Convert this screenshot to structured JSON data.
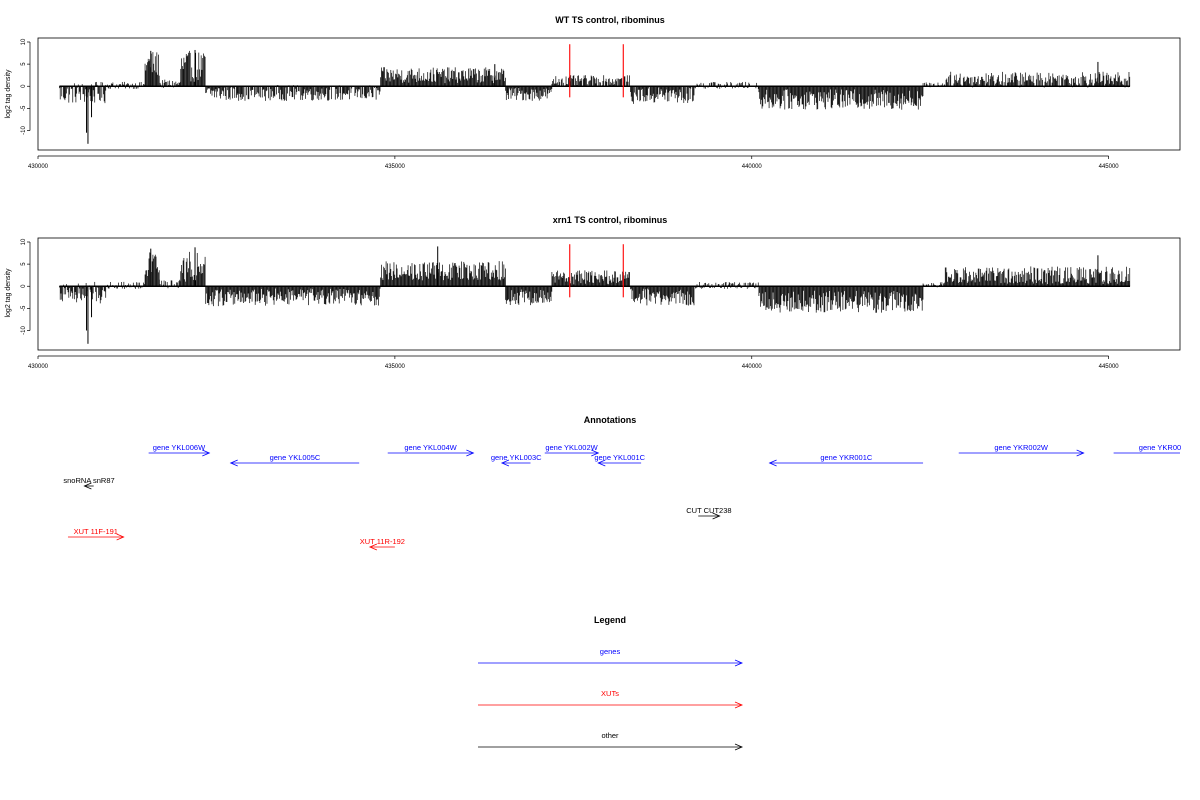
{
  "chart_data": [
    {
      "type": "bar",
      "title": "WT TS control, ribominus",
      "ylabel": "log2 tag density",
      "xlim": [
        430000,
        446000
      ],
      "ylim": [
        -13.5,
        10
      ],
      "yticks": [
        10,
        5,
        0,
        -5,
        -10
      ],
      "ytick_labels": [
        "10",
        "5",
        "0",
        "-5",
        "-10"
      ],
      "xticks": [
        430000,
        435000,
        440000,
        445000
      ],
      "xtick_labels": [
        "430000",
        "435000",
        "440000",
        "445000"
      ],
      "grid": false,
      "baseline": [
        430300,
        445300
      ],
      "red_markers": [
        437450,
        438200
      ],
      "segments": [
        {
          "start": 430300,
          "end": 430950,
          "mean": -1.5,
          "spread": 2.5
        },
        {
          "start": 430950,
          "end": 431500,
          "mean": 0.2,
          "spread": 0.8
        },
        {
          "start": 431500,
          "end": 431700,
          "mean": 5.0,
          "spread": 3.0
        },
        {
          "start": 431700,
          "end": 432000,
          "mean": 0.5,
          "spread": 1.0
        },
        {
          "start": 432000,
          "end": 432350,
          "mean": 4.5,
          "spread": 3.5
        },
        {
          "start": 432350,
          "end": 434800,
          "mean": -1.5,
          "spread": 1.8
        },
        {
          "start": 434800,
          "end": 436550,
          "mean": 2.5,
          "spread": 1.8
        },
        {
          "start": 436550,
          "end": 437200,
          "mean": -1.8,
          "spread": 1.5
        },
        {
          "start": 437200,
          "end": 438300,
          "mean": 1.2,
          "spread": 1.3
        },
        {
          "start": 438300,
          "end": 439200,
          "mean": -2.0,
          "spread": 2.0
        },
        {
          "start": 439200,
          "end": 440100,
          "mean": 0.2,
          "spread": 0.8
        },
        {
          "start": 440100,
          "end": 442400,
          "mean": -3.0,
          "spread": 2.3
        },
        {
          "start": 442400,
          "end": 442700,
          "mean": 0.3,
          "spread": 0.6
        },
        {
          "start": 442700,
          "end": 445300,
          "mean": 1.5,
          "spread": 1.8
        }
      ],
      "spikes": [
        [
          430700,
          -13
        ],
        [
          430680,
          -10.5
        ],
        [
          430750,
          -7
        ],
        [
          431580,
          8
        ],
        [
          432200,
          8.2
        ],
        [
          436400,
          5
        ],
        [
          444850,
          5.5
        ]
      ]
    },
    {
      "type": "bar",
      "title": "xrn1 TS control, ribominus",
      "ylabel": "log2 tag density",
      "xlim": [
        430000,
        446000
      ],
      "ylim": [
        -13.5,
        10
      ],
      "yticks": [
        10,
        5,
        0,
        -5,
        -10
      ],
      "ytick_labels": [
        "10",
        "5",
        "0",
        "-5",
        "-10"
      ],
      "xticks": [
        430000,
        435000,
        440000,
        445000
      ],
      "xtick_labels": [
        "430000",
        "435000",
        "440000",
        "445000"
      ],
      "grid": false,
      "baseline": [
        430300,
        445300
      ],
      "red_markers": [
        437450,
        438200
      ],
      "segments": [
        {
          "start": 430300,
          "end": 430950,
          "mean": -1.5,
          "spread": 2.5
        },
        {
          "start": 430950,
          "end": 431500,
          "mean": 0.2,
          "spread": 0.8
        },
        {
          "start": 431500,
          "end": 431700,
          "mean": 5.0,
          "spread": 3.0
        },
        {
          "start": 431700,
          "end": 432000,
          "mean": 0.5,
          "spread": 1.0
        },
        {
          "start": 432000,
          "end": 432350,
          "mean": 4.5,
          "spread": 3.5
        },
        {
          "start": 432350,
          "end": 434800,
          "mean": -2.5,
          "spread": 2.0
        },
        {
          "start": 434800,
          "end": 436550,
          "mean": 3.5,
          "spread": 2.2
        },
        {
          "start": 436550,
          "end": 437200,
          "mean": -2.5,
          "spread": 1.8
        },
        {
          "start": 437200,
          "end": 438300,
          "mean": 2.0,
          "spread": 1.6
        },
        {
          "start": 438300,
          "end": 439200,
          "mean": -2.5,
          "spread": 2.0
        },
        {
          "start": 439200,
          "end": 440100,
          "mean": 0.2,
          "spread": 0.8
        },
        {
          "start": 440100,
          "end": 442400,
          "mean": -3.5,
          "spread": 2.5
        },
        {
          "start": 442400,
          "end": 442700,
          "mean": 0.3,
          "spread": 0.6
        },
        {
          "start": 442700,
          "end": 445300,
          "mean": 2.5,
          "spread": 2.0
        }
      ],
      "spikes": [
        [
          430700,
          -13
        ],
        [
          430680,
          -10
        ],
        [
          430750,
          -7
        ],
        [
          431580,
          8.5
        ],
        [
          432200,
          8.8
        ],
        [
          435600,
          9
        ],
        [
          444850,
          7
        ]
      ]
    }
  ],
  "annotations": {
    "title": "Annotations",
    "xlim": [
      430000,
      446000
    ],
    "features": [
      {
        "label": "gene YKL006W",
        "start": 431550,
        "end": 432400,
        "dir": "right",
        "kind": "genes",
        "lane": 0
      },
      {
        "label": "gene YKL005C",
        "start": 432700,
        "end": 434500,
        "dir": "left",
        "kind": "genes",
        "lane": 1
      },
      {
        "label": "gene YKL004W",
        "start": 434900,
        "end": 436100,
        "dir": "right",
        "kind": "genes",
        "lane": 0
      },
      {
        "label": "gene YKL003C",
        "start": 436500,
        "end": 436900,
        "dir": "left",
        "kind": "genes",
        "lane": 1
      },
      {
        "label": "gene YKL002W",
        "start": 437100,
        "end": 437850,
        "dir": "right",
        "kind": "genes",
        "lane": 0
      },
      {
        "label": "gene YKL001C",
        "start": 437850,
        "end": 438450,
        "dir": "left",
        "kind": "genes",
        "lane": 1
      },
      {
        "label": "gene YKR001C",
        "start": 440250,
        "end": 442400,
        "dir": "left",
        "kind": "genes",
        "lane": 1
      },
      {
        "label": "gene YKR002W",
        "start": 442900,
        "end": 444650,
        "dir": "right",
        "kind": "genes",
        "lane": 0
      },
      {
        "label": "gene YKR00",
        "start": 445070,
        "end": 446000,
        "dir": "none",
        "kind": "genes",
        "lane": 0
      },
      {
        "label": "snoRNA snR87",
        "start": 430650,
        "end": 430780,
        "dir": "left",
        "kind": "other",
        "lane": 3
      },
      {
        "label": "CUT CUT238",
        "start": 439250,
        "end": 439550,
        "dir": "right",
        "kind": "other",
        "lane": 4
      },
      {
        "label": "XUT 11F-191",
        "start": 430420,
        "end": 431200,
        "dir": "right",
        "kind": "XUTs",
        "lane": 5
      },
      {
        "label": "XUT 11R-192",
        "start": 434650,
        "end": 435000,
        "dir": "left",
        "kind": "XUTs",
        "lane": 6
      }
    ]
  },
  "legend": {
    "title": "Legend",
    "items": [
      {
        "label": "genes",
        "kind": "genes"
      },
      {
        "label": "XUTs",
        "kind": "XUTs"
      },
      {
        "label": "other",
        "kind": "other"
      }
    ]
  },
  "colors": {
    "genes": "#0000ff",
    "XUTs": "#ff0000",
    "other": "#000000",
    "marker": "#ff0000",
    "bars": "#000000"
  }
}
